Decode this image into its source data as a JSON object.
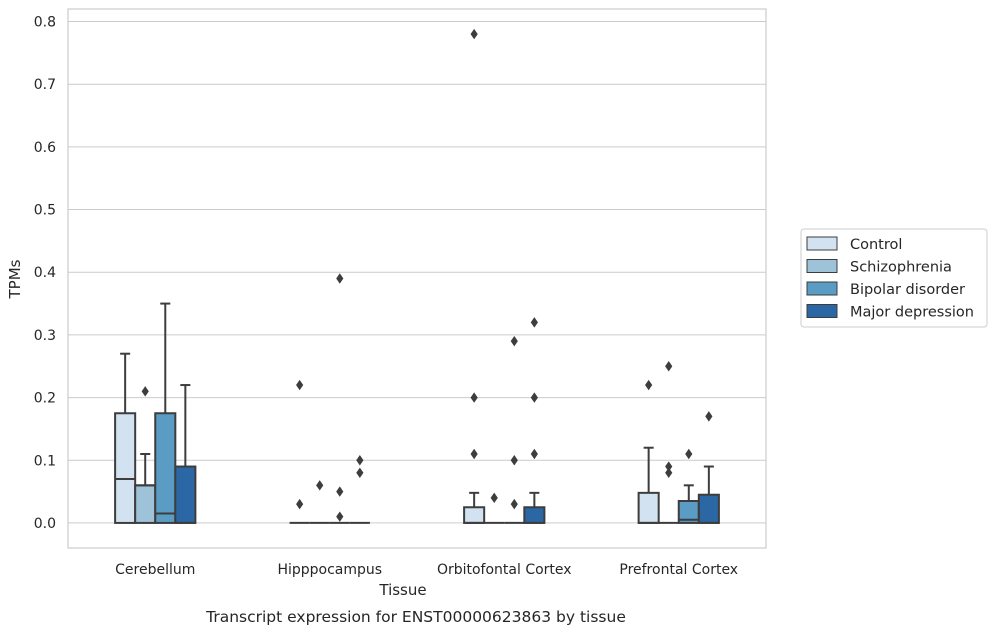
{
  "caption": "Transcript expression for ENST00000623863 by tissue",
  "chart_data": {
    "type": "box",
    "xlabel": "Tissue",
    "ylabel": "TPMs",
    "ylim": [
      -0.04,
      0.82
    ],
    "yticks": [
      0.0,
      0.1,
      0.2,
      0.3,
      0.4,
      0.5,
      0.6,
      0.7,
      0.8
    ],
    "ytick_labels": [
      "0.0",
      "0.1",
      "0.2",
      "0.3",
      "0.4",
      "0.5",
      "0.6",
      "0.7",
      "0.8"
    ],
    "grid": "horizontal",
    "legend_position": "right",
    "categories": [
      "Cerebellum",
      "Hipppocampus",
      "Orbitofontal Cortex",
      "Prefrontal Cortex"
    ],
    "series": [
      {
        "name": "Control",
        "color": "#d2e2f0",
        "boxes": [
          {
            "q1": 0.0,
            "median": 0.07,
            "q3": 0.175,
            "whisker_low": 0.0,
            "whisker_high": 0.27,
            "outliers": []
          },
          {
            "q1": 0.0,
            "median": 0.0,
            "q3": 0.0,
            "whisker_low": 0.0,
            "whisker_high": 0.0,
            "outliers": [
              0.22,
              0.03
            ]
          },
          {
            "q1": 0.0,
            "median": 0.0,
            "q3": 0.025,
            "whisker_low": 0.0,
            "whisker_high": 0.048,
            "outliers": [
              0.78,
              0.2,
              0.11
            ]
          },
          {
            "q1": 0.0,
            "median": 0.0,
            "q3": 0.048,
            "whisker_low": 0.0,
            "whisker_high": 0.12,
            "outliers": [
              0.22
            ]
          }
        ]
      },
      {
        "name": "Schizophrenia",
        "color": "#9ec2d8",
        "boxes": [
          {
            "q1": 0.0,
            "median": 0.06,
            "q3": 0.06,
            "whisker_low": 0.0,
            "whisker_high": 0.11,
            "outliers": [
              0.21
            ]
          },
          {
            "q1": 0.0,
            "median": 0.0,
            "q3": 0.0,
            "whisker_low": 0.0,
            "whisker_high": 0.0,
            "outliers": [
              0.06
            ]
          },
          {
            "q1": 0.0,
            "median": 0.0,
            "q3": 0.0,
            "whisker_low": 0.0,
            "whisker_high": 0.0,
            "outliers": [
              0.04
            ]
          },
          {
            "q1": 0.0,
            "median": 0.0,
            "q3": 0.0,
            "whisker_low": 0.0,
            "whisker_high": 0.0,
            "outliers": [
              0.25,
              0.09,
              0.08
            ]
          }
        ]
      },
      {
        "name": "Bipolar disorder",
        "color": "#5b9cc4",
        "boxes": [
          {
            "q1": 0.0,
            "median": 0.015,
            "q3": 0.175,
            "whisker_low": 0.0,
            "whisker_high": 0.35,
            "outliers": []
          },
          {
            "q1": 0.0,
            "median": 0.0,
            "q3": 0.0,
            "whisker_low": 0.0,
            "whisker_high": 0.0,
            "outliers": [
              0.39,
              0.05,
              0.01
            ]
          },
          {
            "q1": 0.0,
            "median": 0.0,
            "q3": 0.0,
            "whisker_low": 0.0,
            "whisker_high": 0.0,
            "outliers": [
              0.29,
              0.1,
              0.03
            ]
          },
          {
            "q1": 0.0,
            "median": 0.005,
            "q3": 0.035,
            "whisker_low": 0.0,
            "whisker_high": 0.06,
            "outliers": [
              0.11
            ]
          }
        ]
      },
      {
        "name": "Major depression",
        "color": "#2a67a4",
        "boxes": [
          {
            "q1": 0.0,
            "median": 0.0,
            "q3": 0.09,
            "whisker_low": 0.0,
            "whisker_high": 0.22,
            "outliers": []
          },
          {
            "q1": 0.0,
            "median": 0.0,
            "q3": 0.0,
            "whisker_low": 0.0,
            "whisker_high": 0.0,
            "outliers": [
              0.1,
              0.08
            ]
          },
          {
            "q1": 0.0,
            "median": 0.0,
            "q3": 0.025,
            "whisker_low": 0.0,
            "whisker_high": 0.048,
            "outliers": [
              0.32,
              0.2,
              0.11
            ]
          },
          {
            "q1": 0.0,
            "median": 0.0,
            "q3": 0.045,
            "whisker_low": 0.0,
            "whisker_high": 0.09,
            "outliers": [
              0.17
            ]
          }
        ]
      }
    ]
  }
}
